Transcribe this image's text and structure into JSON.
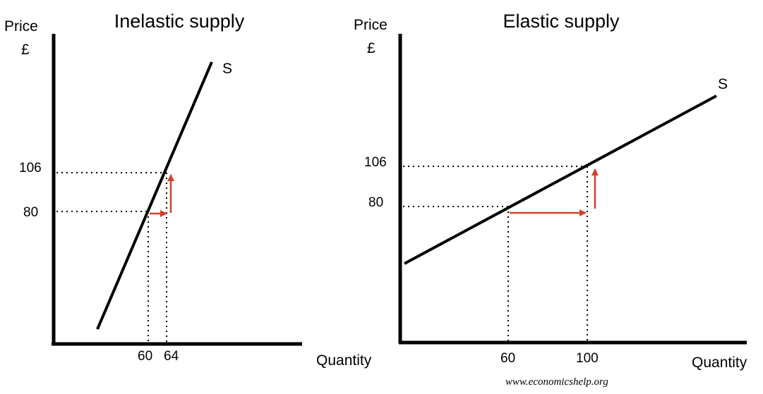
{
  "chart_data": [
    {
      "type": "line",
      "title": "Inelastic supply",
      "ylabel": "Price",
      "ylabel_unit": "£",
      "xlabel": "Quantity",
      "curve_label": "S",
      "x_ticks": [
        "60",
        "64"
      ],
      "y_ticks": [
        "80",
        "106"
      ],
      "points": [
        {
          "x": 60,
          "y": 80
        },
        {
          "x": 64,
          "y": 106
        }
      ],
      "arrow_color": "#d0402a"
    },
    {
      "type": "line",
      "title": "Elastic supply",
      "ylabel": "Price",
      "ylabel_unit": "£",
      "xlabel": "Quantity",
      "curve_label": "S",
      "x_ticks": [
        "60",
        "100"
      ],
      "y_ticks": [
        "80",
        "106"
      ],
      "points": [
        {
          "x": 60,
          "y": 80
        },
        {
          "x": 100,
          "y": 106
        }
      ],
      "arrow_color": "#d0402a"
    }
  ],
  "footer": "www.economicshelp.org"
}
